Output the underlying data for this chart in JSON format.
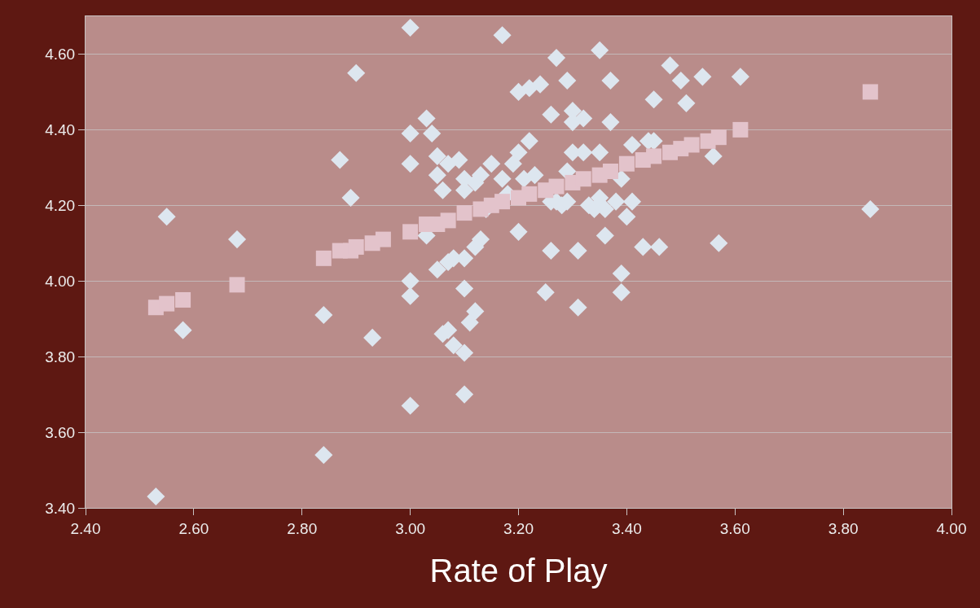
{
  "chart_data": {
    "type": "scatter",
    "xlabel": "Rate of Play",
    "xlim": [
      2.4,
      4.0
    ],
    "ylim": [
      3.4,
      4.7
    ],
    "xticks": [
      {
        "value": 2.4,
        "label": "2.40"
      },
      {
        "value": 2.6,
        "label": "2.60"
      },
      {
        "value": 2.8,
        "label": "2.80"
      },
      {
        "value": 3.0,
        "label": "3.00"
      },
      {
        "value": 3.2,
        "label": "3.20"
      },
      {
        "value": 3.4,
        "label": "3.40"
      },
      {
        "value": 3.6,
        "label": "3.60"
      },
      {
        "value": 3.8,
        "label": "3.80"
      },
      {
        "value": 4.0,
        "label": "4.00"
      }
    ],
    "yticks": [
      {
        "value": 3.4,
        "label": "3.40"
      },
      {
        "value": 3.6,
        "label": "3.60"
      },
      {
        "value": 3.8,
        "label": "3.80"
      },
      {
        "value": 4.0,
        "label": "4.00"
      },
      {
        "value": 4.2,
        "label": "4.20"
      },
      {
        "value": 4.4,
        "label": "4.40"
      },
      {
        "value": 4.6,
        "label": "4.60"
      }
    ],
    "grid": "y",
    "series": [
      {
        "marker": "diamond",
        "color": "#dde6ef",
        "x": [
          2.53,
          2.55,
          2.58,
          2.68,
          2.84,
          2.84,
          2.87,
          2.89,
          2.9,
          2.93,
          3.0,
          3.0,
          3.0,
          3.0,
          3.0,
          3.0,
          3.03,
          3.04,
          3.05,
          3.05,
          3.06,
          3.07,
          3.09,
          3.03,
          3.05,
          3.07,
          3.08,
          3.1,
          3.12,
          3.13,
          3.1,
          3.12,
          3.11,
          3.06,
          3.07,
          3.08,
          3.1,
          3.1,
          3.1,
          3.12,
          3.13,
          3.1,
          3.17,
          3.15,
          3.17,
          3.18,
          3.19,
          3.2,
          3.22,
          3.24,
          3.2,
          3.22,
          3.21,
          3.23,
          3.2,
          3.25,
          3.26,
          3.26,
          3.27,
          3.26,
          3.27,
          3.29,
          3.29,
          3.3,
          3.3,
          3.32,
          3.3,
          3.32,
          3.28,
          3.29,
          3.31,
          3.31,
          3.35,
          3.37,
          3.35,
          3.33,
          3.34,
          3.35,
          3.36,
          3.36,
          3.37,
          3.39,
          3.38,
          3.4,
          3.39,
          3.39,
          3.41,
          3.41,
          3.43,
          3.44,
          3.45,
          3.45,
          3.46,
          3.48,
          3.5,
          3.51,
          3.54,
          3.56,
          3.57,
          3.61,
          3.85,
          3.14
        ],
        "values": [
          3.43,
          4.17,
          3.87,
          4.11,
          3.54,
          3.91,
          4.32,
          4.22,
          4.55,
          3.85,
          4.67,
          4.39,
          4.31,
          4.0,
          3.96,
          3.67,
          4.43,
          4.39,
          4.33,
          4.28,
          4.24,
          4.31,
          4.32,
          4.12,
          4.03,
          4.05,
          4.06,
          4.06,
          4.09,
          4.11,
          3.98,
          3.92,
          3.89,
          3.86,
          3.87,
          3.83,
          3.81,
          3.7,
          4.27,
          4.26,
          4.28,
          4.24,
          4.65,
          4.31,
          4.27,
          4.23,
          4.31,
          4.5,
          4.51,
          4.52,
          4.34,
          4.37,
          4.27,
          4.28,
          4.13,
          3.97,
          4.08,
          4.44,
          4.59,
          4.21,
          4.21,
          4.53,
          4.29,
          4.45,
          4.42,
          4.43,
          4.34,
          4.34,
          4.2,
          4.21,
          4.08,
          3.93,
          4.61,
          4.53,
          4.34,
          4.2,
          4.19,
          4.22,
          4.19,
          4.12,
          4.42,
          4.27,
          4.21,
          4.17,
          4.02,
          3.97,
          4.36,
          4.21,
          4.09,
          4.37,
          4.37,
          4.48,
          4.09,
          4.57,
          4.53,
          4.47,
          4.54,
          4.33,
          4.1,
          4.54,
          4.19,
          4.19
        ]
      },
      {
        "marker": "square",
        "color": "#e3c3cb",
        "x": [
          2.53,
          2.55,
          2.58,
          2.68,
          2.84,
          2.87,
          2.89,
          2.9,
          2.93,
          2.95,
          3.0,
          3.03,
          3.05,
          3.07,
          3.1,
          3.13,
          3.15,
          3.17,
          3.2,
          3.22,
          3.25,
          3.27,
          3.3,
          3.32,
          3.35,
          3.37,
          3.4,
          3.43,
          3.45,
          3.48,
          3.5,
          3.52,
          3.55,
          3.57,
          3.61,
          3.85
        ],
        "values": [
          3.93,
          3.94,
          3.95,
          3.99,
          4.06,
          4.08,
          4.08,
          4.09,
          4.1,
          4.11,
          4.13,
          4.15,
          4.15,
          4.16,
          4.18,
          4.19,
          4.2,
          4.21,
          4.22,
          4.23,
          4.24,
          4.25,
          4.26,
          4.27,
          4.28,
          4.29,
          4.31,
          4.32,
          4.33,
          4.34,
          4.35,
          4.36,
          4.37,
          4.38,
          4.4,
          4.5
        ]
      }
    ]
  }
}
